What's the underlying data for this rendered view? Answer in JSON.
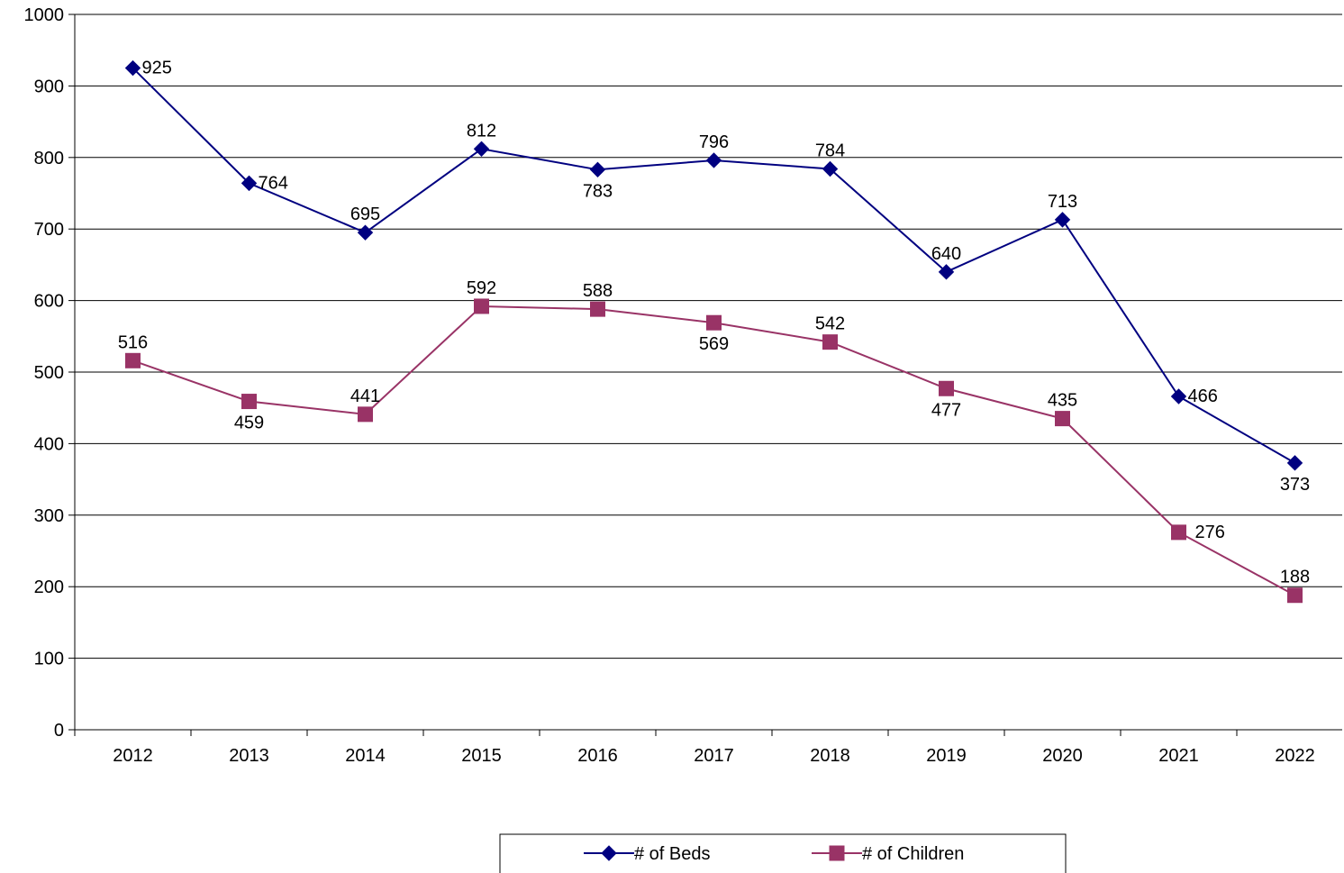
{
  "chart_data": {
    "type": "line",
    "title": "",
    "xlabel": "",
    "ylabel": "",
    "categories": [
      "2012",
      "2013",
      "2014",
      "2015",
      "2016",
      "2017",
      "2018",
      "2019",
      "2020",
      "2021",
      "2022"
    ],
    "ylim": [
      0,
      1000
    ],
    "yticks": [
      "0",
      "100",
      "200",
      "300",
      "400",
      "500",
      "600",
      "700",
      "800",
      "900",
      "1000"
    ],
    "grid": true,
    "legend": "bottom",
    "series": [
      {
        "name": "# of Beds",
        "color": "#000080",
        "marker": "diamond",
        "values": [
          925,
          764,
          695,
          812,
          783,
          796,
          784,
          640,
          713,
          466,
          373
        ],
        "label_pos": [
          "right",
          "right",
          "above",
          "above",
          "below",
          "above",
          "above",
          "above",
          "above",
          "right",
          "below"
        ]
      },
      {
        "name": "# of Children",
        "color": "#993366",
        "marker": "square",
        "values": [
          516,
          459,
          441,
          592,
          588,
          569,
          542,
          477,
          435,
          276,
          188
        ],
        "label_pos": [
          "above",
          "below",
          "above",
          "above",
          "above",
          "below",
          "above",
          "below",
          "above",
          "right",
          "above"
        ]
      }
    ]
  }
}
